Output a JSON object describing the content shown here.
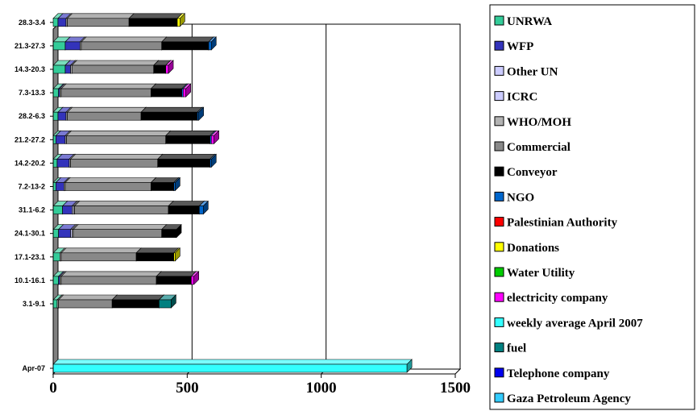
{
  "chart_data": {
    "type": "bar",
    "orientation": "horizontal",
    "stacked": true,
    "three_d": true,
    "categories": [
      "Apr-07",
      "3.1-9.1",
      "10.1-16.1",
      "17.1-23.1",
      "24.1-30.1",
      "31.1-6.2",
      "7.2-13-2",
      "14.2-20.2",
      "21.2-27.2",
      "28.2-6.3",
      "7.3-13.3",
      "14.3-20.3",
      "21.3-27.3",
      "28.3-3.4"
    ],
    "xlim": [
      0,
      1500
    ],
    "xticks": [
      0,
      500,
      1000,
      1500
    ],
    "gridlines": [
      500,
      1000
    ],
    "legend_position": "right",
    "series": [
      {
        "name": "UNRWA",
        "color": "#33cc99",
        "values": [
          0,
          15,
          20,
          25,
          20,
          35,
          10,
          15,
          10,
          18,
          20,
          45,
          45,
          18
        ]
      },
      {
        "name": "WFP",
        "color": "#3333bb",
        "values": [
          0,
          0,
          5,
          0,
          45,
          35,
          30,
          45,
          35,
          30,
          5,
          20,
          55,
          30
        ]
      },
      {
        "name": "Other UN",
        "color": "#ccccff",
        "values": [
          0,
          0,
          0,
          0,
          5,
          5,
          0,
          0,
          0,
          0,
          0,
          0,
          0,
          0
        ]
      },
      {
        "name": "ICRC",
        "color": "#ccccff",
        "values": [
          0,
          0,
          0,
          0,
          0,
          0,
          0,
          0,
          0,
          0,
          0,
          0,
          0,
          0
        ]
      },
      {
        "name": "WHO/MOH",
        "color": "#b3b3b3",
        "values": [
          0,
          5,
          5,
          5,
          5,
          5,
          5,
          5,
          5,
          5,
          5,
          5,
          5,
          5
        ]
      },
      {
        "name": "Commercial",
        "color": "#888888",
        "values": [
          0,
          200,
          355,
          280,
          330,
          350,
          320,
          325,
          370,
          275,
          335,
          305,
          300,
          230
        ]
      },
      {
        "name": "Conveyor",
        "color": "#000000",
        "values": [
          0,
          175,
          130,
          140,
          55,
          115,
          85,
          195,
          165,
          210,
          115,
          45,
          175,
          180
        ]
      },
      {
        "name": "NGO",
        "color": "#0066cc",
        "values": [
          0,
          0,
          0,
          0,
          0,
          15,
          5,
          5,
          5,
          5,
          5,
          0,
          10,
          0
        ]
      },
      {
        "name": "Palestinian Authority",
        "color": "#ff0000",
        "values": [
          0,
          0,
          0,
          0,
          0,
          0,
          0,
          0,
          0,
          0,
          0,
          0,
          0,
          0
        ]
      },
      {
        "name": "Donations",
        "color": "#ffff00",
        "values": [
          0,
          0,
          0,
          5,
          0,
          0,
          0,
          0,
          0,
          0,
          0,
          0,
          0,
          10
        ]
      },
      {
        "name": "Water Utility",
        "color": "#00cc00",
        "values": [
          0,
          0,
          0,
          0,
          0,
          0,
          0,
          0,
          0,
          0,
          0,
          0,
          0,
          0
        ]
      },
      {
        "name": "electricity company",
        "color": "#ff00ff",
        "values": [
          0,
          0,
          10,
          0,
          0,
          0,
          0,
          0,
          10,
          0,
          10,
          10,
          0,
          0
        ]
      },
      {
        "name": "weekly average April 2007",
        "color": "#33ffff",
        "values": [
          1320,
          0,
          0,
          0,
          0,
          0,
          0,
          0,
          0,
          0,
          0,
          0,
          0,
          0
        ]
      },
      {
        "name": "fuel",
        "color": "#008080",
        "values": [
          0,
          45,
          0,
          0,
          0,
          0,
          0,
          0,
          0,
          0,
          0,
          0,
          0,
          0
        ]
      },
      {
        "name": "Telephone company",
        "color": "#0000ee",
        "values": [
          0,
          0,
          0,
          0,
          0,
          0,
          0,
          0,
          0,
          0,
          0,
          0,
          0,
          0
        ]
      },
      {
        "name": "Gaza Petroleum Agency",
        "color": "#33ccff",
        "values": [
          0,
          0,
          0,
          0,
          0,
          0,
          0,
          0,
          0,
          0,
          0,
          0,
          0,
          0
        ]
      }
    ]
  }
}
